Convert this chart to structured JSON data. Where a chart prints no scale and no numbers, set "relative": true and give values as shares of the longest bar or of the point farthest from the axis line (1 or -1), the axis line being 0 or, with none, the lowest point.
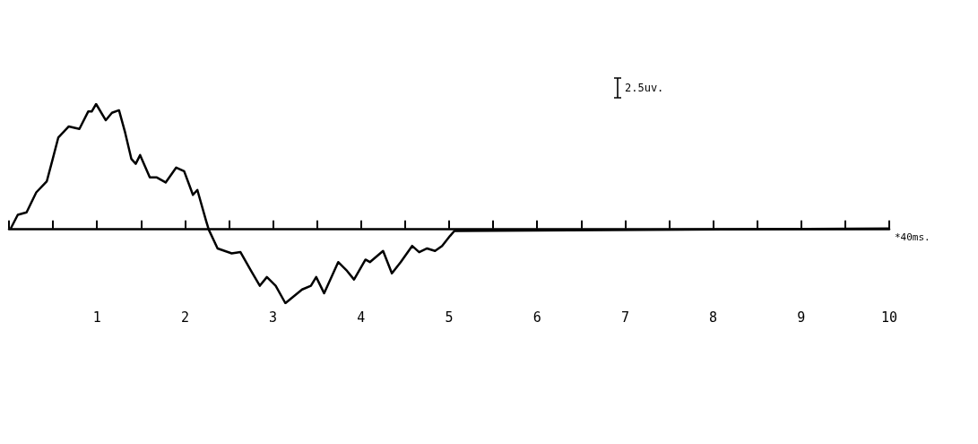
{
  "chart_data": {
    "type": "line",
    "relative": true,
    "xlabel": "*40ms.",
    "annotations": [
      "2.5uv."
    ],
    "xlim": [
      0,
      10
    ],
    "xticks": [
      {
        "value": 0,
        "label": null
      },
      {
        "value": 0.5,
        "label": null
      },
      1,
      {
        "value": 1.5,
        "label": null
      },
      2,
      {
        "value": 2.5,
        "label": null
      },
      3,
      {
        "value": 3.5,
        "label": null
      },
      4,
      {
        "value": 4.5,
        "label": null
      },
      5,
      {
        "value": 5.5,
        "label": null
      },
      6,
      {
        "value": 6.5,
        "label": null
      },
      7,
      {
        "value": 7.5,
        "label": null
      },
      8,
      {
        "value": 8.5,
        "label": null
      },
      9,
      {
        "value": 9.5,
        "label": null
      },
      10
    ],
    "series": [
      {
        "color": "#000000",
        "x": [
          0.02,
          0.1,
          0.2,
          0.31,
          0.43,
          0.49,
          0.56,
          0.68,
          0.8,
          0.9,
          0.94,
          0.99,
          1.1,
          1.17,
          1.25,
          1.32,
          1.39,
          1.44,
          1.49,
          1.6,
          1.68,
          1.78,
          1.9,
          1.99,
          2.09,
          2.14,
          2.24,
          2.27,
          2.37,
          2.53,
          2.63,
          2.75,
          2.85,
          2.93,
          3.03,
          3.14,
          3.33,
          3.43,
          3.49,
          3.58,
          3.74,
          3.84,
          3.92,
          4.05,
          4.1,
          4.25,
          4.35,
          4.45,
          4.58,
          4.66,
          4.75,
          4.84,
          4.92,
          5.01,
          5.06,
          10
        ],
        "values": [
          0,
          0.11,
          0.13,
          0.29,
          0.38,
          0.54,
          0.73,
          0.82,
          0.8,
          0.94,
          0.94,
          1.0,
          0.87,
          0.93,
          0.95,
          0.77,
          0.56,
          0.52,
          0.59,
          0.41,
          0.41,
          0.37,
          0.49,
          0.46,
          0.27,
          0.31,
          0.06,
          -0.01,
          -0.16,
          -0.2,
          -0.19,
          -0.34,
          -0.46,
          -0.39,
          -0.46,
          -0.6,
          -0.49,
          -0.46,
          -0.39,
          -0.52,
          -0.27,
          -0.34,
          -0.41,
          -0.25,
          -0.27,
          -0.18,
          -0.36,
          -0.27,
          -0.14,
          -0.19,
          -0.16,
          -0.18,
          -0.14,
          -0.06,
          -0.02,
          0
        ]
      }
    ]
  }
}
